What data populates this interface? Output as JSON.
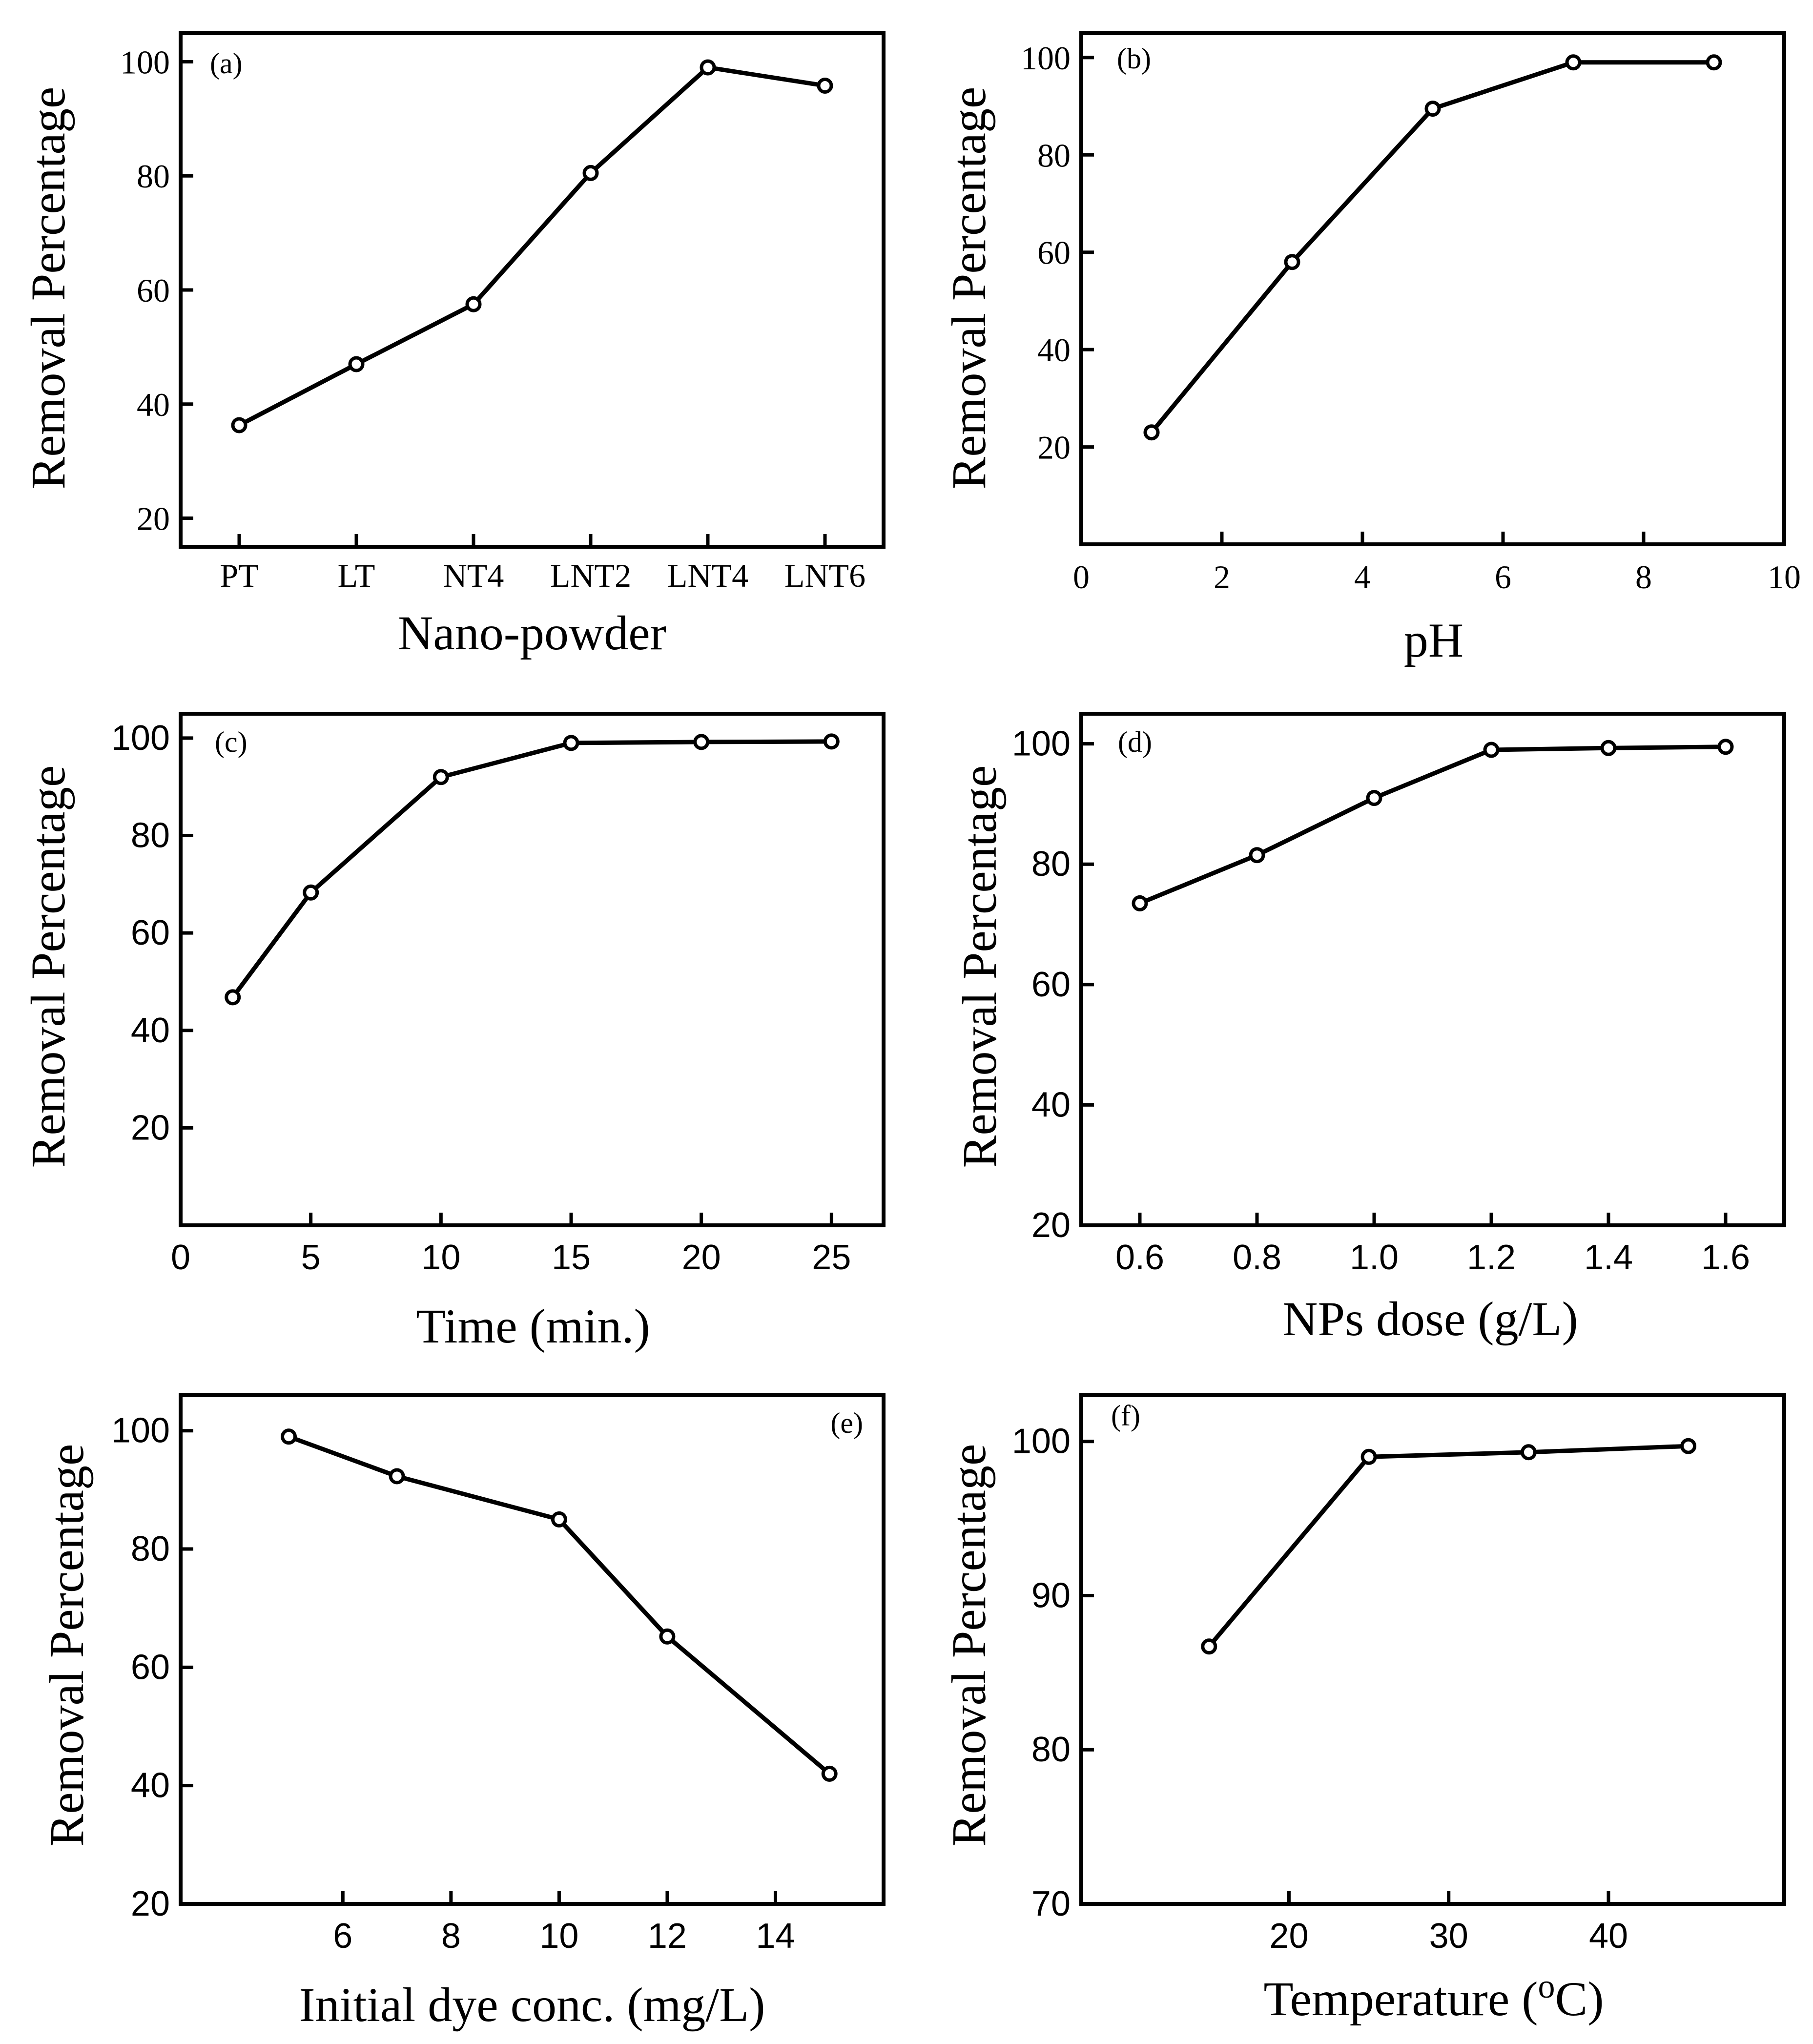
{
  "chart_data": [
    {
      "id": "a",
      "type": "line",
      "tag": "(a)",
      "xlabel": "Nano-powder",
      "ylabel": "Removal Percentage",
      "categories": [
        "PT",
        "LT",
        "NT4",
        "LNT2",
        "LNT4",
        "LNT6"
      ],
      "values": [
        36.3,
        47.0,
        57.5,
        80.5,
        99.0,
        95.8
      ],
      "ylim": [
        15,
        105
      ],
      "yticks": [
        20,
        40,
        60,
        80,
        100
      ],
      "tag_position": "top-left"
    },
    {
      "id": "b",
      "type": "line",
      "tag": "(b)",
      "xlabel": "pH",
      "ylabel": "Removal Percentage",
      "x": [
        1,
        3,
        5,
        7,
        9
      ],
      "values": [
        23.0,
        58.0,
        89.5,
        99.0,
        99.0
      ],
      "xlim": [
        0,
        10
      ],
      "xticks": [
        0,
        2,
        4,
        6,
        8,
        10
      ],
      "ylim": [
        0,
        105
      ],
      "yticks": [
        20,
        40,
        60,
        80,
        100
      ],
      "tag_position": "top-left"
    },
    {
      "id": "c",
      "type": "line",
      "tag": "(c)",
      "xlabel": "Time (min.)",
      "ylabel": "Removal Percentage",
      "x": [
        2,
        5,
        10,
        15,
        20,
        25
      ],
      "values": [
        46.8,
        68.3,
        92.0,
        99.0,
        99.2,
        99.3
      ],
      "xlim": [
        0,
        27
      ],
      "xticks": [
        0,
        5,
        10,
        15,
        20,
        25
      ],
      "ylim": [
        0,
        105
      ],
      "yticks": [
        20,
        40,
        60,
        80,
        100
      ],
      "tag_position": "top-left"
    },
    {
      "id": "d",
      "type": "line",
      "tag": "(d)",
      "xlabel": "NPs dose (g/L)",
      "ylabel": "Removal Percentage",
      "x": [
        0.6,
        0.8,
        1.0,
        1.2,
        1.4,
        1.6
      ],
      "values": [
        73.5,
        81.5,
        91.0,
        99.0,
        99.3,
        99.5
      ],
      "xlim": [
        0.5,
        1.7
      ],
      "xticks": [
        "0.6",
        "0.8",
        "1.0",
        "1.2",
        "1.4",
        "1.6"
      ],
      "ylim": [
        20,
        105
      ],
      "yticks": [
        20,
        40,
        60,
        80,
        100
      ],
      "tag_position": "top-left"
    },
    {
      "id": "e",
      "type": "line",
      "tag": "(e)",
      "xlabel": "Initial dye conc. (mg/L)",
      "ylabel": "Removal Percentage",
      "x": [
        5,
        7,
        10,
        12,
        15
      ],
      "values": [
        99.0,
        92.3,
        85.0,
        65.2,
        42.0
      ],
      "xlim": [
        3,
        16
      ],
      "xticks": [
        6,
        8,
        10,
        12,
        14
      ],
      "ylim": [
        20,
        106
      ],
      "yticks": [
        20,
        40,
        60,
        80,
        100
      ],
      "tag_position": "top-right"
    },
    {
      "id": "f",
      "type": "line",
      "tag": "(f)",
      "xlabel_main": "Temperature (",
      "xlabel_sup": "o",
      "xlabel_end": "C)",
      "ylabel": "Removal Percentage",
      "x": [
        15,
        25,
        35,
        45
      ],
      "values": [
        86.7,
        99.0,
        99.3,
        99.7
      ],
      "xlim": [
        7,
        51
      ],
      "xticks": [
        20,
        30,
        40
      ],
      "ylim": [
        70,
        103
      ],
      "yticks": [
        70,
        80,
        90,
        100
      ],
      "tag_position": "top-left"
    }
  ]
}
